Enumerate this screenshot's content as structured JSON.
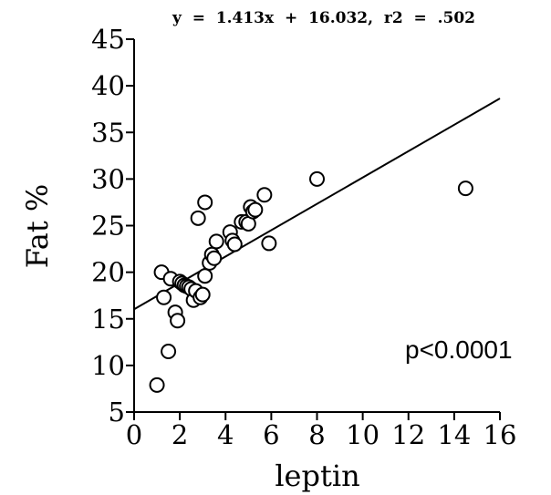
{
  "chart_data": {
    "type": "scatter",
    "title": "y  =  1.413x  +  16.032,  r2  =  .502",
    "xlabel": "leptin",
    "ylabel": "Fat %",
    "annotation": "p<0.0001",
    "xlim": [
      0,
      16
    ],
    "ylim": [
      5,
      45
    ],
    "x_ticks": [
      0,
      2,
      4,
      6,
      8,
      10,
      12,
      14,
      16
    ],
    "y_ticks": [
      5,
      10,
      15,
      20,
      25,
      30,
      35,
      40,
      45
    ],
    "grid": false,
    "legend": "none",
    "regression": {
      "slope": 1.413,
      "intercept": 16.032,
      "x_range": [
        0,
        16
      ]
    },
    "points": [
      {
        "x": 1.0,
        "y": 7.9
      },
      {
        "x": 1.2,
        "y": 20.0
      },
      {
        "x": 1.3,
        "y": 17.3
      },
      {
        "x": 1.5,
        "y": 11.5
      },
      {
        "x": 1.6,
        "y": 19.3
      },
      {
        "x": 1.8,
        "y": 15.7
      },
      {
        "x": 1.9,
        "y": 14.8
      },
      {
        "x": 2.0,
        "y": 19.0
      },
      {
        "x": 2.1,
        "y": 18.8
      },
      {
        "x": 2.2,
        "y": 18.6
      },
      {
        "x": 2.3,
        "y": 18.5
      },
      {
        "x": 2.4,
        "y": 18.4
      },
      {
        "x": 2.5,
        "y": 18.2
      },
      {
        "x": 2.6,
        "y": 17.0
      },
      {
        "x": 2.7,
        "y": 18.0
      },
      {
        "x": 2.8,
        "y": 25.8
      },
      {
        "x": 2.9,
        "y": 17.3
      },
      {
        "x": 3.0,
        "y": 17.6
      },
      {
        "x": 3.1,
        "y": 19.6
      },
      {
        "x": 3.1,
        "y": 27.5
      },
      {
        "x": 3.3,
        "y": 21.0
      },
      {
        "x": 3.4,
        "y": 21.9
      },
      {
        "x": 3.5,
        "y": 21.5
      },
      {
        "x": 3.6,
        "y": 23.3
      },
      {
        "x": 4.2,
        "y": 24.3
      },
      {
        "x": 4.3,
        "y": 23.4
      },
      {
        "x": 4.4,
        "y": 23.0
      },
      {
        "x": 4.7,
        "y": 25.4
      },
      {
        "x": 4.9,
        "y": 25.4
      },
      {
        "x": 5.0,
        "y": 25.2
      },
      {
        "x": 5.1,
        "y": 27.0
      },
      {
        "x": 5.2,
        "y": 26.5
      },
      {
        "x": 5.3,
        "y": 26.7
      },
      {
        "x": 5.7,
        "y": 28.3
      },
      {
        "x": 5.9,
        "y": 23.1
      },
      {
        "x": 8.0,
        "y": 30.0
      },
      {
        "x": 14.5,
        "y": 29.0
      }
    ]
  }
}
